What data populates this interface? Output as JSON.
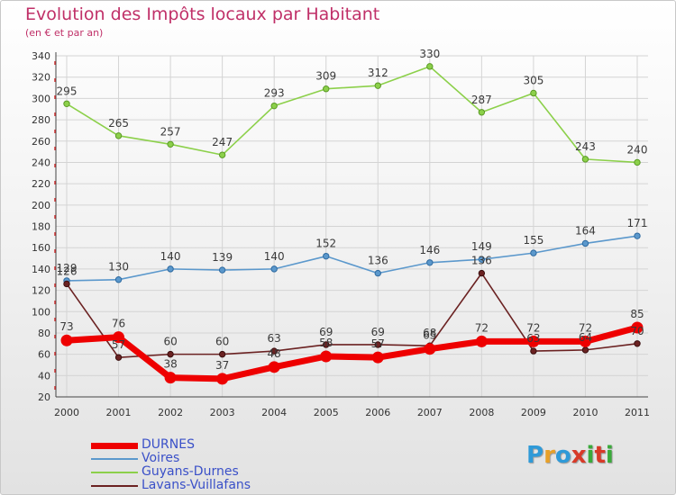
{
  "header": {
    "title": "Evolution des Impôts locaux par Habitant",
    "subtitle": "(en € et par an)"
  },
  "logo": {
    "letters": [
      "P",
      "r",
      "o",
      "x",
      "i",
      "t",
      "i"
    ],
    "colors": [
      "#2f9ad8",
      "#e8a028",
      "#2f9ad8",
      "#d83a28",
      "#3aaa3a",
      "#d83a28",
      "#3aaa3a"
    ]
  },
  "chart_data": {
    "type": "line",
    "x": [
      "2000",
      "2001",
      "2002",
      "2003",
      "2004",
      "2005",
      "2006",
      "2007",
      "2008",
      "2009",
      "2010",
      "2011"
    ],
    "ylim": [
      20,
      340
    ],
    "yticks": [
      20,
      40,
      60,
      80,
      100,
      120,
      140,
      160,
      180,
      200,
      220,
      240,
      260,
      280,
      300,
      320,
      340
    ],
    "grid": true,
    "legend_position": "bottom-left",
    "series": [
      {
        "name": "Guyans-Durnes",
        "color": "#8cd04a",
        "values": [
          295,
          265,
          257,
          247,
          293,
          309,
          312,
          330,
          287,
          305,
          243,
          240
        ],
        "labels": [
          "295",
          "265",
          "257",
          "247",
          "293",
          "309",
          "312",
          "330",
          "287",
          "305",
          "243",
          "240"
        ]
      },
      {
        "name": "Voires",
        "color": "#5b98cc",
        "values": [
          129,
          130,
          140,
          139,
          140,
          152,
          136,
          146,
          149,
          155,
          164,
          171
        ],
        "labels": [
          "129",
          "130",
          "140",
          "139",
          "140",
          "152",
          "136",
          "146",
          "149",
          "155",
          "164",
          "171"
        ]
      },
      {
        "name": "Lavans-Vuillafans",
        "color": "#6b2222",
        "values": [
          126,
          57,
          60,
          60,
          63,
          69,
          69,
          68,
          136,
          63,
          64,
          70
        ],
        "labels": [
          "126",
          "57",
          "60",
          "60",
          "63",
          "69",
          "69",
          "68",
          "136",
          "63",
          "64",
          "70"
        ]
      },
      {
        "name": "DURNES",
        "color": "#ee0000",
        "values": [
          73,
          76,
          38,
          37,
          48,
          58,
          57,
          65,
          72,
          72,
          72,
          85
        ],
        "labels": [
          "73",
          "76",
          "38",
          "37",
          "48",
          "58",
          "57",
          "65",
          "72",
          "72",
          "72",
          "85"
        ]
      }
    ],
    "legend": [
      {
        "name": "DURNES",
        "color": "#ee0000",
        "thickness": 7
      },
      {
        "name": "Voires",
        "color": "#5b98cc",
        "thickness": 2
      },
      {
        "name": "Guyans-Durnes",
        "color": "#8cd04a",
        "thickness": 2
      },
      {
        "name": "Lavans-Vuillafans",
        "color": "#6b2222",
        "thickness": 2
      }
    ]
  }
}
